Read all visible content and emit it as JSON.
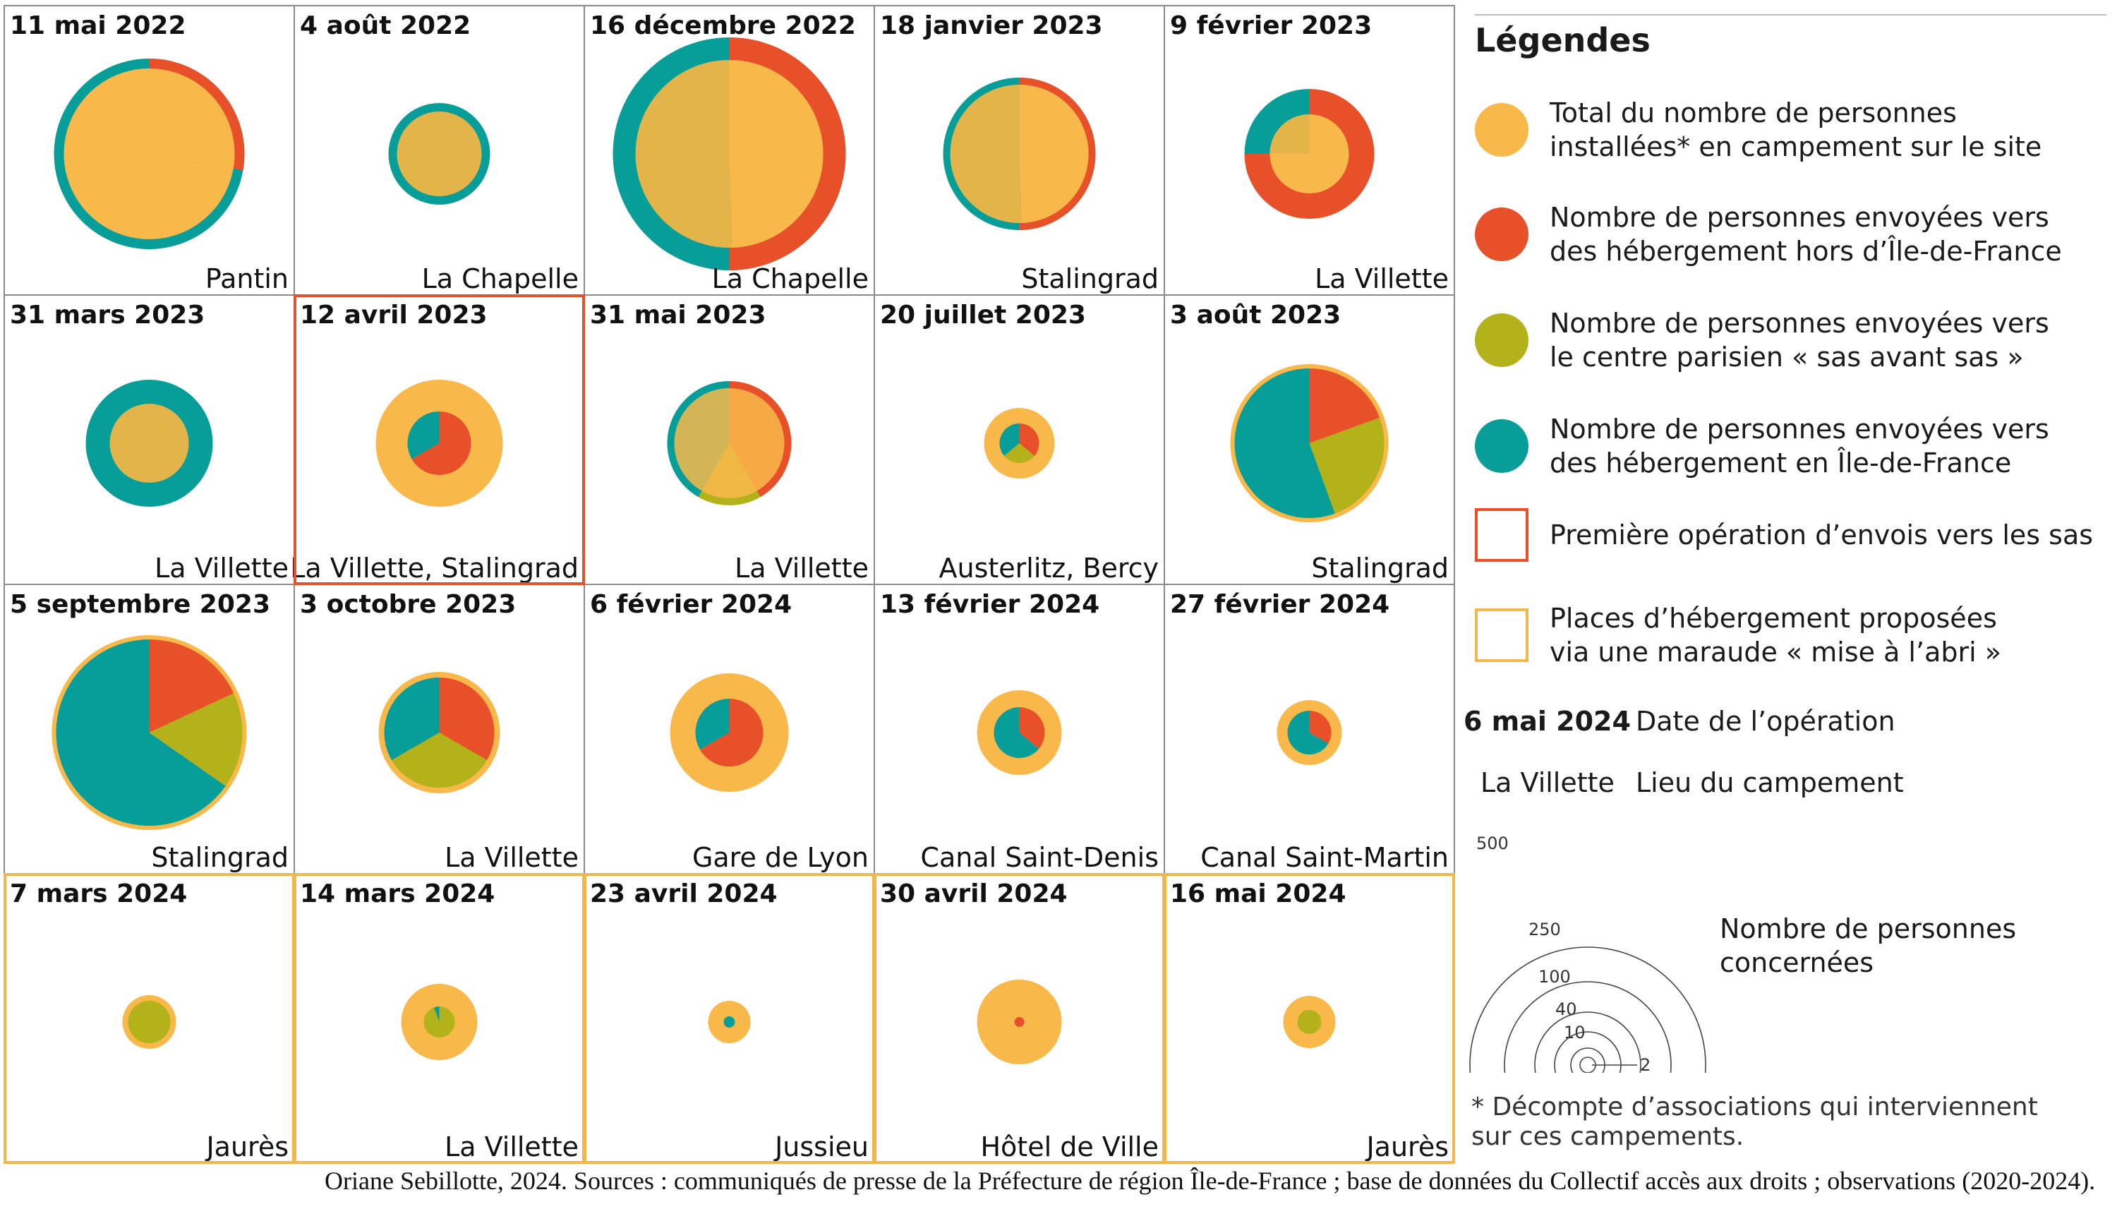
{
  "colors": {
    "total": "#F8B84A",
    "total_overlay": "#E2B44A",
    "outside_idf": "#E8502A",
    "sas": "#B4B21A",
    "idf": "#079E99",
    "first_sas_border": "#E8502A",
    "maraude_border": "#F2B64A",
    "grid_line": "#8a8a8a"
  },
  "cells": [
    {
      "date": "11 mai 2022",
      "place": "Pantin"
    },
    {
      "date": "4 août 2022",
      "place": "La Chapelle"
    },
    {
      "date": "16 décembre 2022",
      "place": "La Chapelle"
    },
    {
      "date": "18 janvier 2023",
      "place": "Stalingrad"
    },
    {
      "date": "9 février 2023",
      "place": "La Villette"
    },
    {
      "date": "31 mars 2023",
      "place": "La Villette"
    },
    {
      "date": "12 avril 2023",
      "place": "La Villette, Stalingrad",
      "highlight": "first_sas"
    },
    {
      "date": "31 mai 2023",
      "place": "La Villette"
    },
    {
      "date": "20 juillet 2023",
      "place": "Austerlitz, Bercy"
    },
    {
      "date": "3 août 2023",
      "place": "Stalingrad"
    },
    {
      "date": "5 septembre 2023",
      "place": "Stalingrad"
    },
    {
      "date": "3 octobre 2023",
      "place": "La Villette"
    },
    {
      "date": "6 février 2024",
      "place": "Gare de Lyon"
    },
    {
      "date": "13 février 2024",
      "place": "Canal Saint-Denis"
    },
    {
      "date": "27 février 2024",
      "place": "Canal Saint-Martin"
    },
    {
      "date": "7 mars 2024",
      "place": "Jaurès",
      "highlight": "maraude"
    },
    {
      "date": "14 mars 2024",
      "place": "La Villette",
      "highlight": "maraude"
    },
    {
      "date": "23 avril 2024",
      "place": "Jussieu",
      "highlight": "maraude"
    },
    {
      "date": "30 avril 2024",
      "place": "Hôtel de Ville",
      "highlight": "maraude"
    },
    {
      "date": "16 mai 2024",
      "place": "Jaurès",
      "highlight": "maraude"
    }
  ],
  "legend": {
    "title": "Légendes",
    "items": [
      {
        "key": "total",
        "text": "Total du nombre de personnes\ninstallées* en campement sur le site"
      },
      {
        "key": "outside_idf",
        "text": "Nombre de personnes envoyées vers\ndes hébergement hors d’Île-de-France"
      },
      {
        "key": "sas",
        "text": "Nombre de personnes envoyées vers\nle centre parisien « sas avant sas »"
      },
      {
        "key": "idf",
        "text": "Nombre de personnes envoyées vers\ndes hébergement en Île-de-France"
      },
      {
        "key": "first_sas",
        "text": "Première opération d’envois vers les sas"
      },
      {
        "key": "maraude",
        "text": "Places d’hébergement proposées\nvia une maraude « mise à l’abri »"
      }
    ],
    "date_example": "6 mai 2024",
    "date_desc": "Date de l’opération",
    "place_example": "La Villette",
    "place_desc": "Lieu du campement",
    "scale_values": [
      "500",
      "250",
      "100",
      "40",
      "10",
      "2"
    ],
    "scale_label": "Nombre de personnes\nconcernées",
    "footnote": "* Décompte d’associations qui interviennent\nsur ces campements."
  },
  "credit": "Oriane Sebillotte, 2024. Sources : communiqués de presse de la Préfecture de région Île-de-France ; base de données du Collectif accès aux droits ; observations (2020-2024)."
}
